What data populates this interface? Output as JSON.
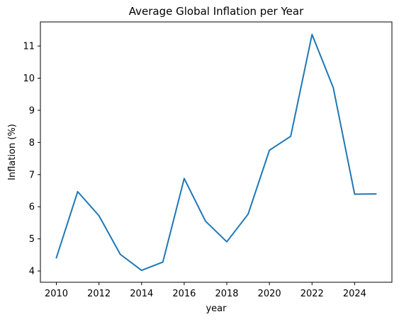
{
  "chart_data": {
    "type": "line",
    "title": "Average Global Inflation per Year",
    "xlabel": "year",
    "ylabel": "Inflation (%)",
    "x": [
      2010,
      2011,
      2012,
      2013,
      2014,
      2015,
      2016,
      2017,
      2018,
      2019,
      2020,
      2021,
      2022,
      2023,
      2024,
      2025
    ],
    "series": [
      {
        "color": "#1f77b4",
        "values": [
          4.41,
          6.47,
          5.72,
          4.52,
          4.02,
          4.28,
          6.88,
          5.55,
          4.91,
          5.77,
          7.76,
          8.19,
          11.36,
          9.7,
          6.39,
          6.4
        ]
      }
    ],
    "xlim": [
      2009.25,
      2025.75
    ],
    "ylim": [
      3.65,
      11.75
    ],
    "xticks": [
      2010,
      2012,
      2014,
      2016,
      2018,
      2020,
      2022,
      2024
    ],
    "yticks": [
      4,
      5,
      6,
      7,
      8,
      9,
      10,
      11
    ],
    "grid": false,
    "legend": "none"
  }
}
